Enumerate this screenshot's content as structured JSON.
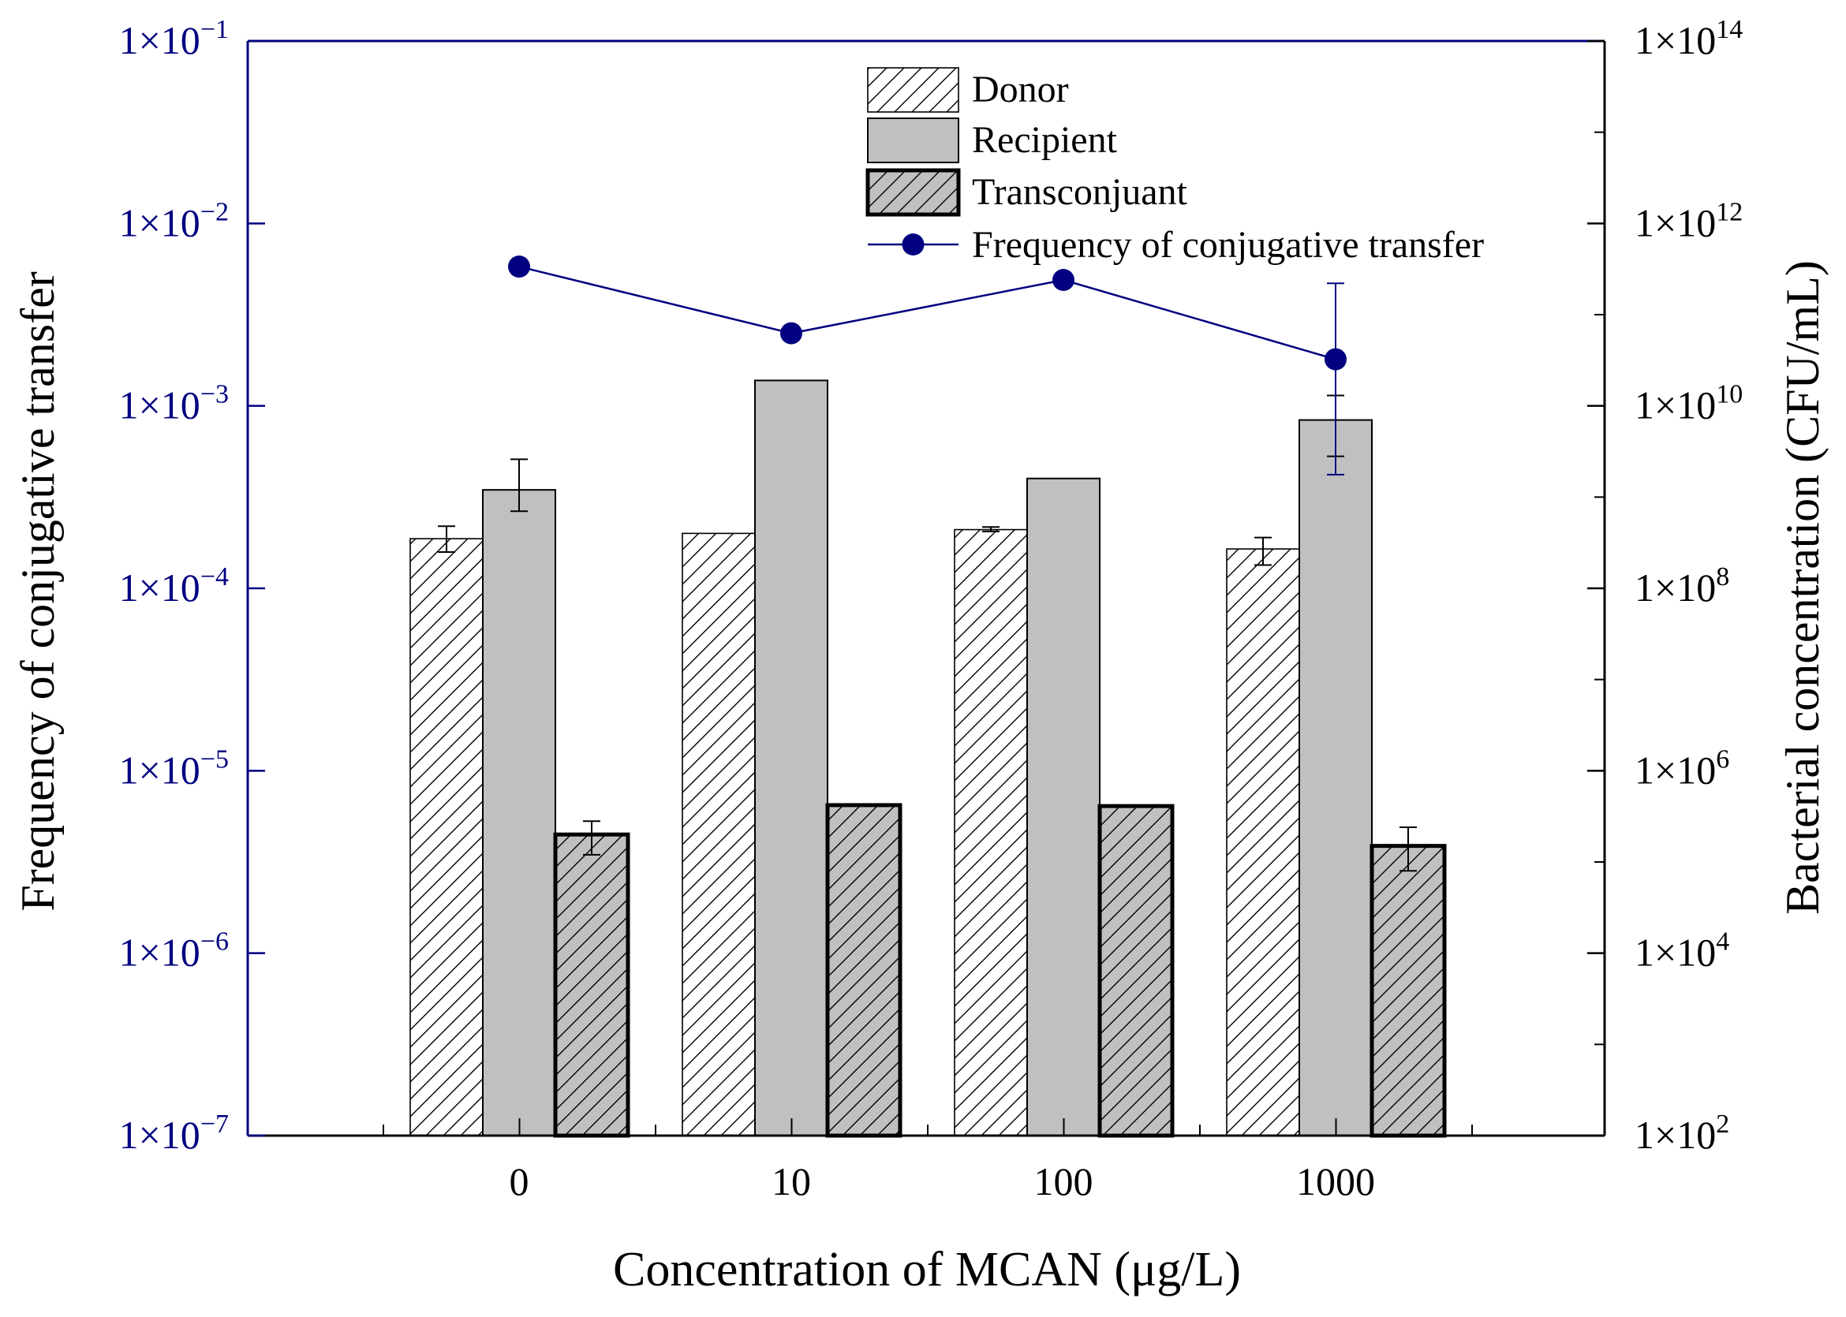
{
  "chart_data": {
    "type": "bar",
    "categories": [
      "0",
      "10",
      "100",
      "1000"
    ],
    "xlabel": "Concentration of MCAN (μg/L)",
    "ylabel_left": "Frequency of conjugative transfer",
    "ylabel_right": "Bacterial concentration (CFU/mL)",
    "ylim_left": [
      1e-07,
      0.1
    ],
    "ylim_right": [
      100,
      100000000000000.0
    ],
    "scale": "log",
    "left_ticks": [
      {
        "base": "1×10",
        "exp": "−1",
        "value": 0.1
      },
      {
        "base": "1×10",
        "exp": "−2",
        "value": 0.01
      },
      {
        "base": "1×10",
        "exp": "−3",
        "value": 0.001
      },
      {
        "base": "1×10",
        "exp": "−4",
        "value": 0.0001
      },
      {
        "base": "1×10",
        "exp": "−5",
        "value": 1e-05
      },
      {
        "base": "1×10",
        "exp": "−6",
        "value": 1e-06
      },
      {
        "base": "1×10",
        "exp": "−7",
        "value": 1e-07
      }
    ],
    "right_ticks": [
      {
        "base": "1×10",
        "exp": "14",
        "value": 100000000000000.0
      },
      {
        "base": "1×10",
        "exp": "12",
        "value": 1000000000000.0
      },
      {
        "base": "1×10",
        "exp": "10",
        "value": 10000000000.0
      },
      {
        "base": "1×10",
        "exp": "8",
        "value": 100000000.0
      },
      {
        "base": "1×10",
        "exp": "6",
        "value": 1000000.0
      },
      {
        "base": "1×10",
        "exp": "4",
        "value": 10000.0
      },
      {
        "base": "1×10",
        "exp": "2",
        "value": 100.0
      }
    ],
    "series": [
      {
        "name": "Donor",
        "axis": "right",
        "kind": "bar",
        "values": [
          350000000,
          400000000,
          440000000,
          270000000
        ],
        "errors": [
          [
            250000000,
            480000000
          ],
          null,
          [
            420000000,
            470000000
          ],
          [
            180000000,
            360000000
          ]
        ]
      },
      {
        "name": "Recipient",
        "axis": "right",
        "kind": "bar",
        "values": [
          1200000000,
          19000000000,
          1600000000,
          7000000000
        ],
        "errors": [
          [
            700000000,
            2600000000
          ],
          null,
          null,
          [
            2800000000,
            13000000000
          ]
        ]
      },
      {
        "name": "Transconjuant",
        "axis": "right",
        "kind": "bar",
        "values": [
          200000,
          420000,
          410000,
          150000
        ],
        "errors": [
          [
            120000,
            280000
          ],
          null,
          null,
          [
            80000,
            240000
          ]
        ]
      },
      {
        "name": "Frequency of conjugative transfer",
        "axis": "left",
        "kind": "line",
        "values": [
          0.0058,
          0.0025,
          0.0049,
          0.0018
        ],
        "errors": [
          null,
          [
            0.0024,
            0.0027
          ],
          null,
          [
            0.00042,
            0.0047
          ]
        ]
      }
    ],
    "legend": [
      "Donor",
      "Recipient",
      "Transconjuant",
      "Frequency of conjugative transfer"
    ],
    "legend_position": "top-center",
    "colors": {
      "axis_left": "#000080",
      "line": "#000080",
      "recipient_fill": "#c0c0c0",
      "transconjuant_fill": "#c0c0c0"
    }
  }
}
